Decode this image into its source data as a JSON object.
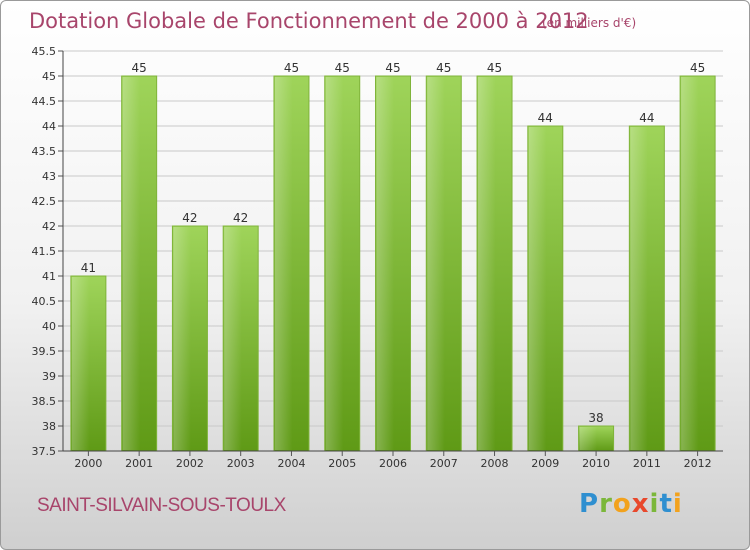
{
  "title": "Dotation Globale de Fonctionnement de 2000 à 2012",
  "unit": "(en milliers d'€)",
  "commune": "SAINT-SILVAIN-SOUS-TOULX",
  "logo": "Proxiti",
  "colors": {
    "title": "#a8456b",
    "bar_top": "#9fd45a",
    "bar_bottom": "#5f9a16",
    "grid": "#c9c9c9"
  },
  "chart_data": {
    "type": "bar",
    "title": "Dotation Globale de Fonctionnement de 2000 à 2012",
    "xlabel": "",
    "ylabel": "",
    "categories": [
      "2000",
      "2001",
      "2002",
      "2003",
      "2004",
      "2005",
      "2006",
      "2007",
      "2008",
      "2009",
      "2010",
      "2011",
      "2012"
    ],
    "values": [
      41,
      45,
      42,
      42,
      45,
      45,
      45,
      45,
      45,
      44,
      38,
      44,
      45
    ],
    "data_labels": [
      "41",
      "45",
      "42",
      "42",
      "45",
      "45",
      "45",
      "45",
      "45",
      "44",
      "38",
      "44",
      "45"
    ],
    "ylim": [
      37.5,
      45.5
    ],
    "yticks": [
      "37.5",
      "38",
      "38.5",
      "39",
      "39.5",
      "40",
      "40.5",
      "41",
      "41.5",
      "42",
      "42.5",
      "43",
      "43.5",
      "44",
      "44.5",
      "45",
      "45.5"
    ],
    "grid": true,
    "legend": "none"
  }
}
